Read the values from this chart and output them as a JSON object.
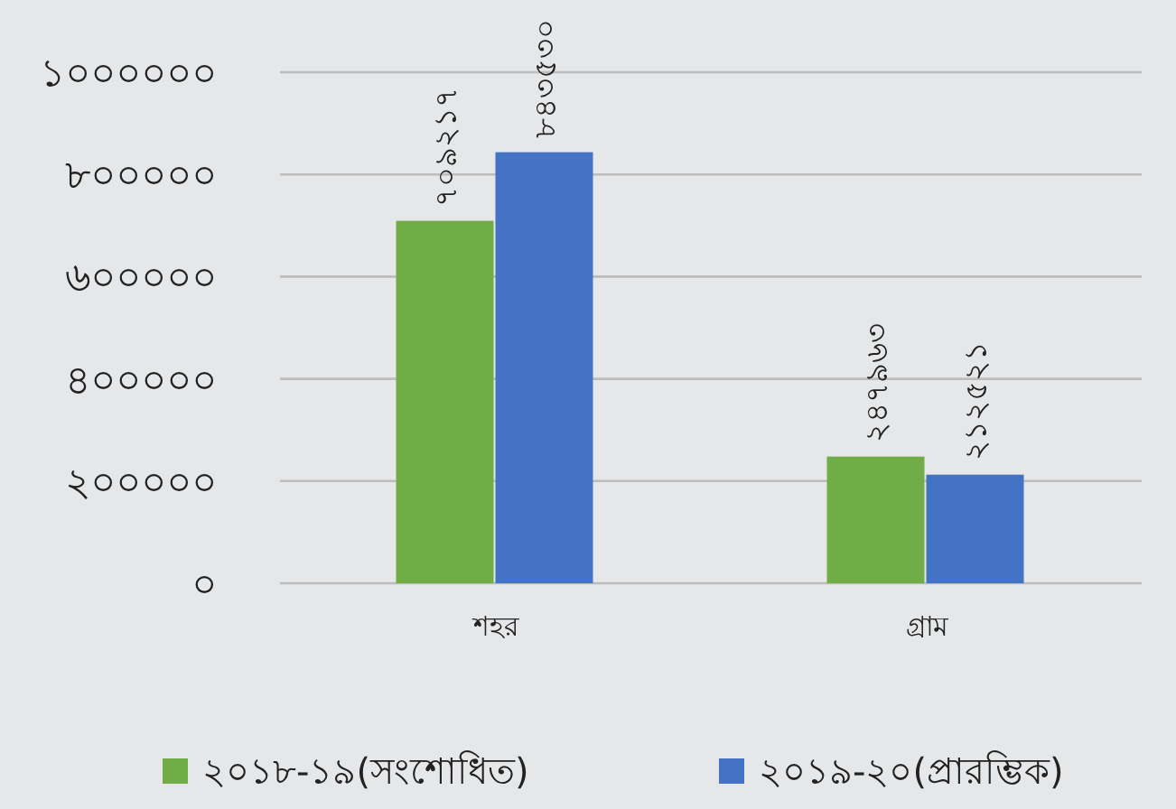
{
  "chart_data": {
    "type": "bar",
    "categories": [
      "শহর",
      "গ্রাম"
    ],
    "series": [
      {
        "name": "২০১৮-১৯(সংশোধিত)",
        "color": "#70ad47",
        "values": [
          709217,
          247963
        ],
        "value_labels": [
          "৭০৯২১৭",
          "২৪৭৯৬৩"
        ]
      },
      {
        "name": "২০১৯-২০(প্রারম্ভিক)",
        "color": "#4472c4",
        "values": [
          843530,
          212521
        ],
        "value_labels": [
          "৮৪৩৫৩০",
          "২১২৫২১"
        ]
      }
    ],
    "ylim": [
      0,
      1000000
    ],
    "yticks": [
      {
        "value": 0,
        "label": "০"
      },
      {
        "value": 200000,
        "label": "২০০০০০"
      },
      {
        "value": 400000,
        "label": "৪০০০০০"
      },
      {
        "value": 600000,
        "label": "৬০০০০০"
      },
      {
        "value": 800000,
        "label": "৮০০০০০"
      },
      {
        "value": 1000000,
        "label": "১০০০০০০"
      }
    ],
    "grid": "y",
    "legend": "bottom"
  }
}
